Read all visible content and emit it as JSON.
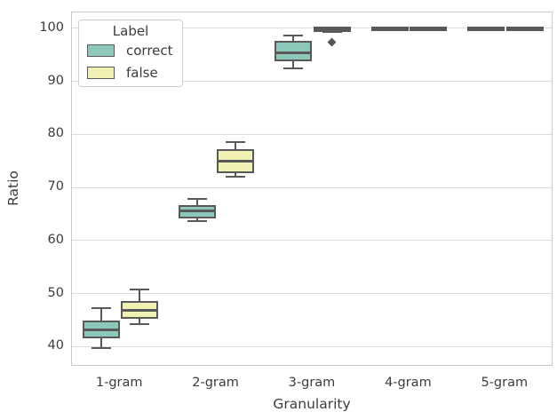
{
  "chart_data": {
    "type": "grouped_boxplot",
    "title": "",
    "xlabel": "Granularity",
    "ylabel": "Ratio",
    "categories": [
      "1-gram",
      "2-gram",
      "3-gram",
      "4-gram",
      "5-gram"
    ],
    "y_ticks": [
      40,
      50,
      60,
      70,
      80,
      90,
      100
    ],
    "ylim": [
      36.2,
      103.0
    ],
    "grid": "horizontal-only",
    "legend": {
      "title": "Label",
      "position": "upper-left",
      "items": [
        {
          "label": "correct",
          "color": "#8cc9bb"
        },
        {
          "label": "false",
          "color": "#f1f1b4"
        }
      ]
    },
    "series": [
      {
        "name": "correct",
        "color": "#8cc9bb",
        "boxes": [
          {
            "category": "1-gram",
            "whisker_low": 39.7,
            "q1": 41.9,
            "median": 43.2,
            "q3": 44.5,
            "whisker_high": 47.2,
            "outliers": []
          },
          {
            "category": "2-gram",
            "whisker_low": 63.6,
            "q1": 64.5,
            "median": 65.5,
            "q3": 66.4,
            "whisker_high": 67.8,
            "outliers": []
          },
          {
            "category": "3-gram",
            "whisker_low": 92.5,
            "q1": 94.2,
            "median": 95.3,
            "q3": 97.3,
            "whisker_high": 98.7,
            "outliers": []
          },
          {
            "category": "4-gram",
            "whisker_low": 99.8,
            "q1": 99.9,
            "median": 99.95,
            "q3": 100.0,
            "whisker_high": 100.0,
            "outliers": []
          },
          {
            "category": "5-gram",
            "whisker_low": 99.8,
            "q1": 99.9,
            "median": 99.95,
            "q3": 100.0,
            "whisker_high": 100.0,
            "outliers": []
          }
        ]
      },
      {
        "name": "false",
        "color": "#f1f1b4",
        "boxes": [
          {
            "category": "1-gram",
            "whisker_low": 44.3,
            "q1": 45.6,
            "median": 46.8,
            "q3": 48.2,
            "whisker_high": 50.8,
            "outliers": []
          },
          {
            "category": "2-gram",
            "whisker_low": 72.0,
            "q1": 73.0,
            "median": 75.0,
            "q3": 76.8,
            "whisker_high": 78.6,
            "outliers": []
          },
          {
            "category": "3-gram",
            "whisker_low": 99.4,
            "q1": 99.6,
            "median": 99.85,
            "q3": 100.0,
            "whisker_high": 100.0,
            "outliers": [
              97.4
            ]
          },
          {
            "category": "4-gram",
            "whisker_low": 99.8,
            "q1": 99.9,
            "median": 99.95,
            "q3": 100.0,
            "whisker_high": 100.0,
            "outliers": []
          },
          {
            "category": "5-gram",
            "whisker_low": 99.8,
            "q1": 99.9,
            "median": 99.95,
            "q3": 100.0,
            "whisker_high": 100.0,
            "outliers": []
          }
        ]
      }
    ],
    "colors": {
      "box_edge": "#595959",
      "median_line": "#595959",
      "outlier_marker": "#555555",
      "gridline": "#dcdcdc",
      "spine": "#c9c9c9",
      "text": "#3c3c3c",
      "background": "#ffffff"
    }
  }
}
